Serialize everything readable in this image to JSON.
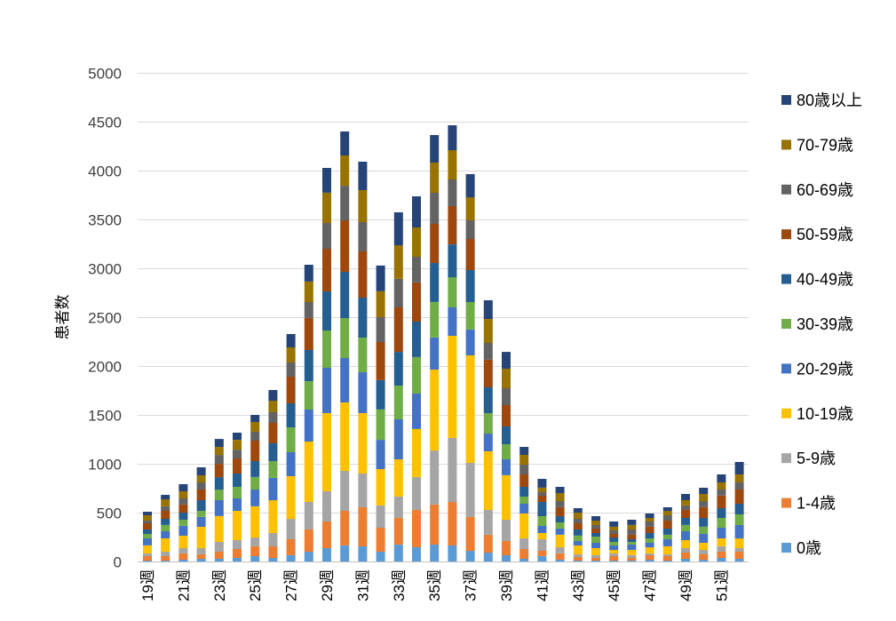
{
  "chart_data": {
    "type": "bar",
    "stacked": true,
    "title": "",
    "xlabel": "",
    "ylabel": "患者数",
    "ylim": [
      0,
      5000
    ],
    "yticks": [
      0,
      500,
      1000,
      1500,
      2000,
      2500,
      3000,
      3500,
      4000,
      4500,
      5000
    ],
    "grid": true,
    "legend_position": "right",
    "weeks": [
      19,
      20,
      21,
      22,
      23,
      24,
      25,
      26,
      27,
      28,
      29,
      30,
      31,
      32,
      33,
      34,
      35,
      36,
      37,
      38,
      39,
      40,
      41,
      42,
      43,
      44,
      45,
      46,
      47,
      48,
      49,
      50,
      51,
      52
    ],
    "x_tick_labels": [
      "19週",
      "21週",
      "23週",
      "25週",
      "27週",
      "29週",
      "31週",
      "33週",
      "35週",
      "37週",
      "39週",
      "41週",
      "43週",
      "45週",
      "47週",
      "49週",
      "51週"
    ],
    "series": [
      {
        "name": "0歳",
        "color": "#5B9BD5",
        "values": [
          9,
          9,
          18,
          27,
          27,
          36,
          55,
          36,
          64,
          100,
          136,
          164,
          155,
          100,
          173,
          145,
          173,
          164,
          109,
          91,
          64,
          27,
          55,
          18,
          9,
          9,
          9,
          9,
          18,
          9,
          27,
          18,
          36,
          27
        ]
      },
      {
        "name": "1-4歳",
        "color": "#ED7D31",
        "values": [
          46,
          46,
          64,
          46,
          73,
          91,
          100,
          119,
          163,
          227,
          273,
          354,
          400,
          245,
          272,
          382,
          409,
          445,
          346,
          182,
          145,
          100,
          54,
          64,
          36,
          27,
          46,
          27,
          46,
          46,
          64,
          55,
          64,
          73
        ]
      },
      {
        "name": "5-9歳",
        "color": "#A5A5A5",
        "values": [
          27,
          45,
          54,
          63,
          100,
          91,
          90,
          136,
          209,
          282,
          309,
          409,
          345,
          228,
          219,
          337,
          554,
          655,
          554,
          254,
          218,
          109,
          118,
          63,
          28,
          28,
          27,
          28,
          18,
          18,
          45,
          45,
          55,
          36
        ]
      },
      {
        "name": "10-19歳",
        "color": "#FFC000",
        "values": [
          82,
          136,
          128,
          219,
          264,
          300,
          319,
          336,
          437,
          618,
          800,
          700,
          618,
          372,
          381,
          491,
          828,
          1045,
          1100,
          600,
          455,
          255,
          64,
          128,
          91,
          72,
          36,
          54,
          63,
          82,
          82,
          73,
          81,
          100
        ]
      },
      {
        "name": "20-29歳",
        "color": "#4472C4",
        "values": [
          72,
          73,
          100,
          100,
          163,
          128,
          172,
          228,
          245,
          328,
          464,
          455,
          418,
          300,
          410,
          363,
          327,
          291,
          264,
          182,
          163,
          100,
          73,
          63,
          45,
          55,
          46,
          55,
          46,
          72,
          91,
          91,
          109,
          137
        ]
      },
      {
        "name": "30-39歳",
        "color": "#70AD47",
        "values": [
          46,
          64,
          63,
          63,
          109,
          118,
          128,
          172,
          255,
          290,
          382,
          409,
          355,
          310,
          345,
          373,
          364,
          309,
          282,
          209,
          155,
          73,
          100,
          64,
          55,
          64,
          36,
          27,
          45,
          46,
          64,
          73,
          100,
          109
        ]
      },
      {
        "name": "40-49歳",
        "color": "#255E91",
        "values": [
          45,
          63,
          73,
          109,
          127,
          136,
          163,
          182,
          245,
          319,
          400,
          473,
          409,
          300,
          345,
          364,
          400,
          336,
          327,
          264,
          182,
          100,
          145,
          64,
          63,
          36,
          45,
          27,
          55,
          63,
          72,
          90,
          100,
          109
        ]
      },
      {
        "name": "50-59歳",
        "color": "#9E480E",
        "values": [
          64,
          82,
          82,
          109,
          136,
          155,
          209,
          209,
          273,
          327,
          436,
          527,
          473,
          390,
          455,
          400,
          400,
          391,
          318,
          282,
          218,
          127,
          64,
          91,
          64,
          45,
          37,
          46,
          64,
          82,
          82,
          110,
          128,
          145
        ]
      },
      {
        "name": "60-69歳",
        "color": "#636363",
        "values": [
          27,
          46,
          63,
          73,
          91,
          90,
          91,
          109,
          145,
          164,
          264,
          354,
          300,
          255,
          291,
          263,
          318,
          273,
          191,
          172,
          173,
          100,
          36,
          63,
          45,
          37,
          36,
          54,
          54,
          55,
          46,
          63,
          63,
          73
        ]
      },
      {
        "name": "70-79歳",
        "color": "#997300",
        "values": [
          55,
          72,
          73,
          73,
          82,
          100,
          100,
          118,
          155,
          209,
          309,
          310,
          327,
          264,
          345,
          300,
          309,
          300,
          236,
          246,
          200,
          100,
          46,
          82,
          64,
          45,
          37,
          46,
          36,
          45,
          54,
          73,
          73,
          82
        ]
      },
      {
        "name": "80歳以上",
        "color": "#264478",
        "values": [
          36,
          46,
          73,
          82,
          82,
          73,
          73,
          110,
          136,
          172,
          254,
          245,
          291,
          264,
          337,
          318,
          282,
          255,
          237,
          191,
          172,
          82,
          90,
          64,
          45,
          46,
          54,
          54,
          46,
          37,
          64,
          64,
          82,
          127
        ]
      }
    ]
  }
}
